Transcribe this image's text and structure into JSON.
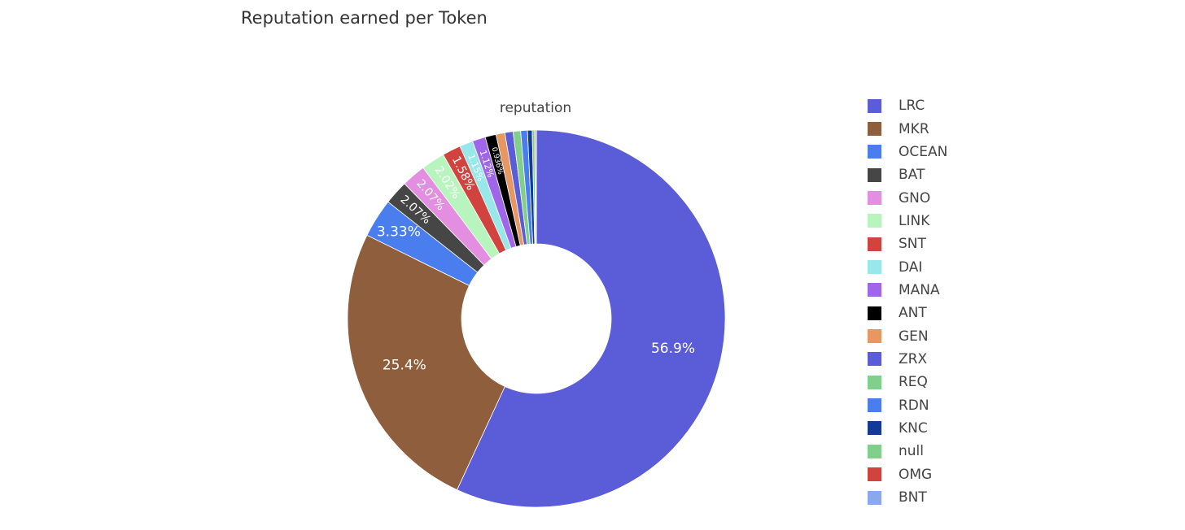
{
  "chart_data": {
    "type": "pie",
    "hole": true,
    "title": "Reputation earned per Token",
    "subtitle": "reputation",
    "legend_position": "right",
    "slices": [
      {
        "label": "LRC",
        "percent": 56.9,
        "shown_label": "56.9%",
        "color": "#5a5cd8"
      },
      {
        "label": "MKR",
        "percent": 25.4,
        "shown_label": "25.4%",
        "color": "#8f5e3d"
      },
      {
        "label": "OCEAN",
        "percent": 3.33,
        "shown_label": "3.33%",
        "color": "#4a7ded"
      },
      {
        "label": "BAT",
        "percent": 2.07,
        "shown_label": "2.07%",
        "color": "#464646"
      },
      {
        "label": "GNO",
        "percent": 2.07,
        "shown_label": "2.07%",
        "color": "#e38ee1"
      },
      {
        "label": "LINK",
        "percent": 2.02,
        "shown_label": "2.02%",
        "color": "#b8f4bd"
      },
      {
        "label": "SNT",
        "percent": 1.58,
        "shown_label": "1.58%",
        "color": "#d1433f"
      },
      {
        "label": "DAI",
        "percent": 1.15,
        "shown_label": "1.15%",
        "color": "#98e8ea"
      },
      {
        "label": "MANA",
        "percent": 1.12,
        "shown_label": "1.12%",
        "color": "#a066ea"
      },
      {
        "label": "ANT",
        "percent": 0.936,
        "shown_label": "0.936%",
        "color": "#000000"
      },
      {
        "label": "GEN",
        "percent": 0.76,
        "shown_label": "",
        "color": "#e69762"
      },
      {
        "label": "ZRX",
        "percent": 0.7,
        "shown_label": "",
        "color": "#5a5cd8"
      },
      {
        "label": "REQ",
        "percent": 0.64,
        "shown_label": "",
        "color": "#80cf8a"
      },
      {
        "label": "RDN",
        "percent": 0.58,
        "shown_label": "",
        "color": "#4a7ded"
      },
      {
        "label": "KNC",
        "percent": 0.4,
        "shown_label": "",
        "color": "#123b99"
      },
      {
        "label": "null",
        "percent": 0.2,
        "shown_label": "",
        "color": "#80cf8a"
      },
      {
        "label": "OMG",
        "percent": 0.1,
        "shown_label": "",
        "color": "#d1433f"
      },
      {
        "label": "BNT",
        "percent": 0.05,
        "shown_label": "",
        "color": "#8aa8ee"
      }
    ]
  }
}
